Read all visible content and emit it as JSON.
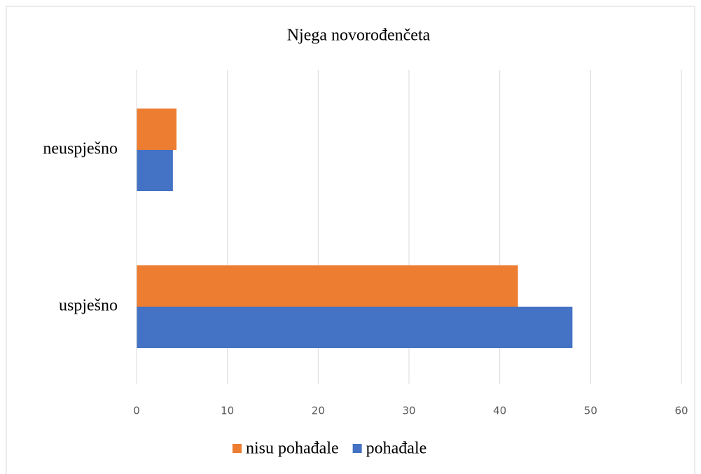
{
  "chart_data": {
    "type": "hbar",
    "title": "Njega novorođenčeta",
    "categories": [
      "neuspješno",
      "uspješno"
    ],
    "series": [
      {
        "name": "nisu pohađale",
        "color": "#ed7d31",
        "values": [
          4.4,
          42
        ]
      },
      {
        "name": "pohađale",
        "color": "#4472c4",
        "values": [
          4,
          48
        ]
      }
    ],
    "xlim": [
      0,
      60
    ],
    "xticks": [
      0,
      10,
      20,
      30,
      40,
      50,
      60
    ],
    "grid": true,
    "legend": "bottom"
  }
}
